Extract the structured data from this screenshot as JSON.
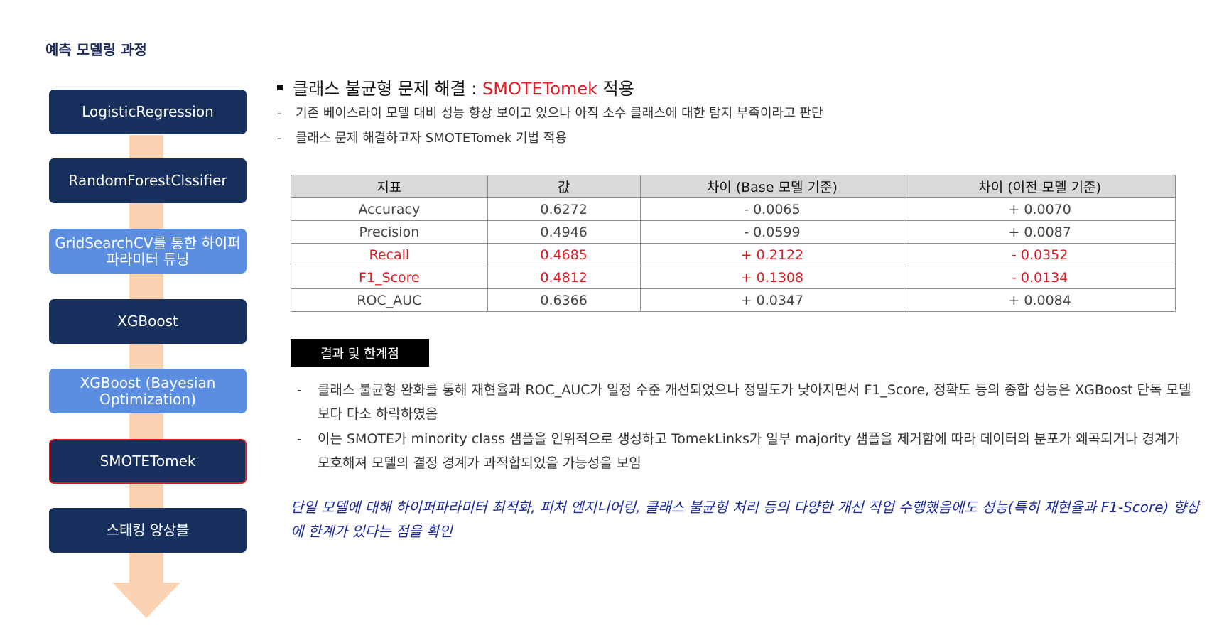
{
  "page": {
    "title": "예측 모델링 과정"
  },
  "flow": {
    "steps": [
      {
        "label": "LogisticRegression",
        "style": "dark"
      },
      {
        "label": "RandomForestClssifier",
        "style": "dark"
      },
      {
        "label": "GridSearchCV를 통한 하이퍼파라미터 튜닝",
        "style": "light"
      },
      {
        "label": "XGBoost",
        "style": "light-dark"
      },
      {
        "label": "XGBoost (Bayesian Optimization)",
        "style": "light"
      },
      {
        "label": "SMOTETomek",
        "style": "dark-highlighted"
      },
      {
        "label": "스태킹 앙상블",
        "style": "dark"
      }
    ],
    "colors": {
      "dark": "#17305e",
      "light": "#5b8de0",
      "arrow": "#fbd3b3",
      "highlight_border": "#e31b23"
    }
  },
  "section": {
    "heading_prefix": "클래스 불균형 문제 해결 : ",
    "heading_accent": "SMOTETomek",
    "heading_suffix": " 적용",
    "bullets": [
      "기존 베이스라이 모델 대비 성능 향상 보이고 있으나 아직 소수 클래스에 대한 탐지 부족이라고 판단",
      "클래스 문제 해결하고자 SMOTETomek 기법 적용"
    ],
    "dash": "-"
  },
  "table": {
    "headers": [
      "지표",
      "값",
      "차이 (Base 모델 기준)",
      "차이 (이전 모델 기준)"
    ],
    "rows": [
      {
        "cells": [
          "Accuracy",
          "0.6272",
          "- 0.0065",
          "+ 0.0070"
        ],
        "highlight": false
      },
      {
        "cells": [
          "Precision",
          "0.4946",
          "- 0.0599",
          "+ 0.0087"
        ],
        "highlight": false
      },
      {
        "cells": [
          "Recall",
          "0.4685",
          "+ 0.2122",
          "- 0.0352"
        ],
        "highlight": true
      },
      {
        "cells": [
          "F1_Score",
          "0.4812",
          "+ 0.1308",
          "- 0.0134"
        ],
        "highlight": true
      },
      {
        "cells": [
          "ROC_AUC",
          "0.6366",
          "+ 0.0347",
          "+ 0.0084"
        ],
        "highlight": false
      }
    ],
    "highlight_color": "#e31b23"
  },
  "results": {
    "badge": "결과 및 한계점",
    "items": [
      "클래스 불균형 완화를 통해 재현율과 ROC_AUC가 일정 수준 개선되었으나 정밀도가 낮아지면서 F1_Score, 정확도 등의 종합 성능은 XGBoost 단독 모델보다 다소 하락하였음",
      "이는 SMOTE가 minority class 샘플을 인위적으로 생성하고 TomekLinks가 일부 majority 샘플을 제거함에 따라 데이터의 분포가 왜곡되거나 경계가 모호해져 모델의 결정 경계가 과적합되었을 가능성을 보임"
    ]
  },
  "conclusion": {
    "text": "단일 모델에 대해 하이퍼파라미터 최적화, 피처 엔지니어링, 클래스 불균형 처리 등의 다양한 개선 작업 수행했음에도 성능(특히 재현율과 F1-Score) 향상에 한계가 있다는 점을 확인",
    "color": "#1a2a9e"
  }
}
